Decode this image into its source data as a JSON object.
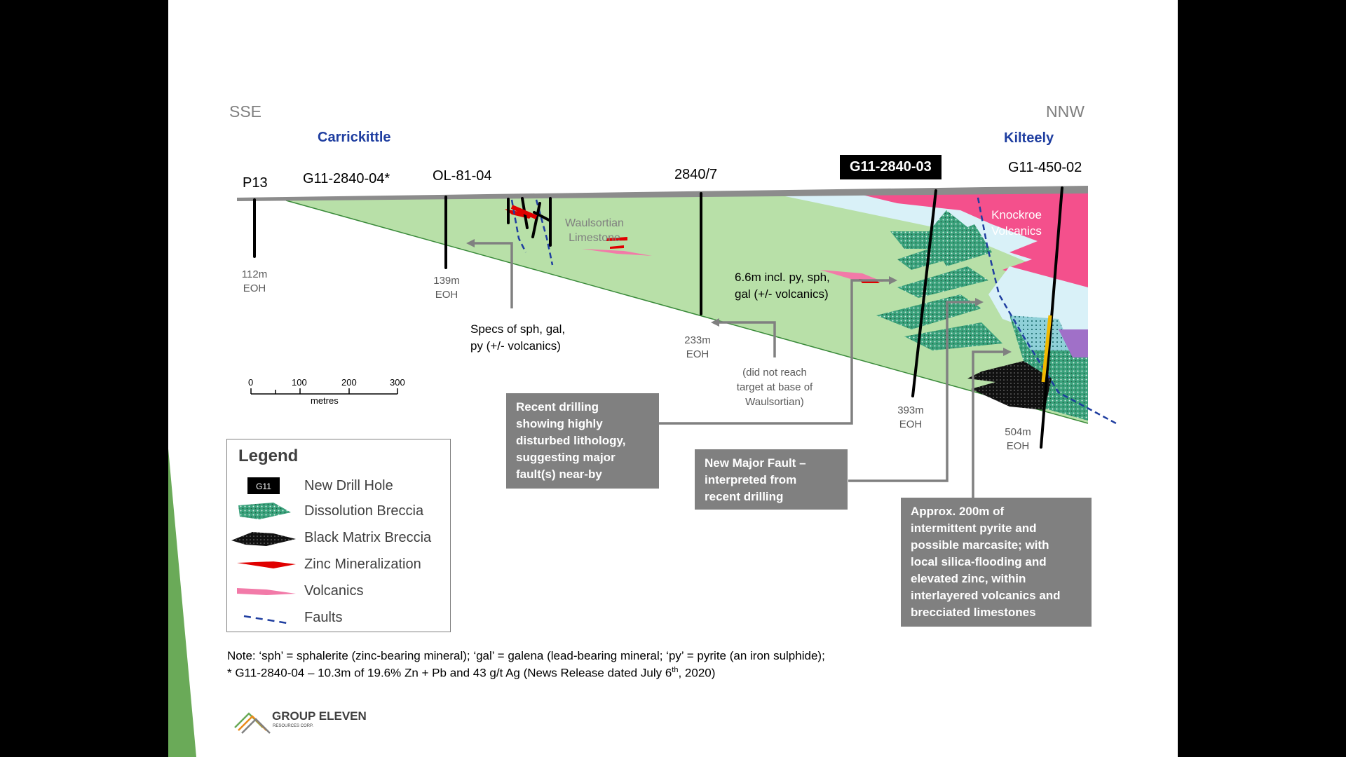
{
  "directions": {
    "left": "SSE",
    "right": "NNW"
  },
  "places": {
    "left": "Carrickittle",
    "right": "Kilteely"
  },
  "drill_holes": [
    {
      "id": "P13",
      "depth": "112m\nEOH"
    },
    {
      "id": "G11-2840-04*"
    },
    {
      "id": "OL-81-04",
      "depth": "139m\nEOH"
    },
    {
      "id": "2840/7",
      "depth": "233m\nEOH"
    },
    {
      "id": "G11-2840-03",
      "depth": "393m\nEOH"
    },
    {
      "id": "G11-450-02",
      "depth": "504m\nEOH"
    }
  ],
  "units": {
    "waulsortian": "Waulsortian\nLimestone",
    "knockroe": "Knockroe\nVolcanics"
  },
  "annotations": {
    "ol_specs": "Specs of sph, gal,\npy (+/- volcanics)",
    "intercept_2840_7": "6.6m incl. py, sph,\ngal (+/- volcanics)",
    "did_not_reach": "(did not reach\ntarget at base of\nWaulsortian)"
  },
  "callouts": {
    "recent_drilling": "Recent drilling\nshowing highly\ndisturbed lithology,\nsuggesting major\nfault(s) near-by",
    "new_fault": "New Major Fault –\ninterpreted from\nrecent drilling",
    "pyrite": "Approx. 200m of\nintermittent pyrite and\npossible marcasite; with\nlocal silica-flooding and\nelevated zinc, within\ninterlayered volcanics and\nbrecciated limestones"
  },
  "scale": {
    "ticks": [
      "0",
      "100",
      "200",
      "300"
    ],
    "unit": "metres"
  },
  "legend": {
    "title": "Legend",
    "badge": "G11",
    "items": [
      {
        "label": "New Drill Hole",
        "icon": "new-drill-hole-icon"
      },
      {
        "label": "Dissolution Breccia",
        "icon": "dissolution-breccia-icon"
      },
      {
        "label": "Black Matrix Breccia",
        "icon": "black-matrix-breccia-icon"
      },
      {
        "label": "Zinc Mineralization",
        "icon": "zinc-mineralization-icon"
      },
      {
        "label": "Volcanics",
        "icon": "volcanics-icon"
      },
      {
        "label": "Faults",
        "icon": "faults-icon"
      }
    ]
  },
  "notes": {
    "line1": "Note: ‘sph’ = sphalerite (zinc-bearing mineral); ‘gal’ = galena (lead-bearing mineral; ‘py’ = pyrite (an iron sulphide);",
    "line2_pre": "* G11-2840-04 – 10.3m of 19.6% Zn + Pb and 43 g/t Ag (News Release dated July 6",
    "line2_sup": "th",
    "line2_post": ", 2020)"
  },
  "logo": {
    "name": "GROUP ELEVEN",
    "sub": "RESOURCES CORP."
  },
  "colors": {
    "limestone": "#b8e0a8",
    "volcanics": "#f4508c",
    "light_blue": "#d9f1f8",
    "callout": "#808080",
    "place_blue": "#1f3ea0",
    "accent_green": "#6aaa58"
  }
}
